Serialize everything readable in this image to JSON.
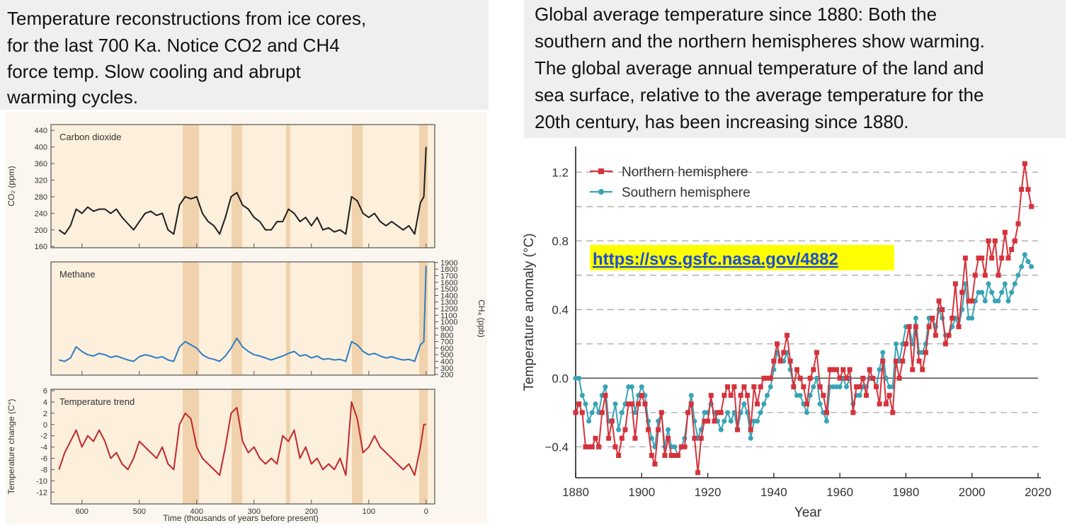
{
  "texts": {
    "left": [
      "Temperature reconstructions from ice cores,",
      "for the last 700 Ka. Notice CO2 and CH4",
      "force temp.  Slow cooling and abrupt",
      "warming cycles."
    ],
    "right": [
      "Global average temperature since 1880: Both the",
      "southern and the northern hemispheres show warming.",
      "The global average annual temperature of the land and",
      "sea surface, relative to the average temperature for the",
      "20th century, has been increasing since 1880."
    ]
  },
  "chart_data": [
    {
      "type": "line",
      "xlabel": "Time (thousands of years before present)",
      "x": [
        640,
        630,
        620,
        610,
        600,
        590,
        580,
        570,
        560,
        550,
        540,
        530,
        520,
        510,
        500,
        490,
        480,
        470,
        460,
        450,
        440,
        430,
        420,
        410,
        400,
        390,
        380,
        370,
        360,
        350,
        340,
        330,
        320,
        310,
        300,
        290,
        280,
        270,
        260,
        250,
        240,
        230,
        220,
        210,
        200,
        190,
        180,
        170,
        160,
        150,
        140,
        130,
        120,
        110,
        100,
        90,
        80,
        70,
        60,
        50,
        40,
        30,
        20,
        10,
        4,
        0
      ],
      "xlim": [
        654,
        -15
      ],
      "xticks": [
        600,
        500,
        400,
        300,
        200,
        100,
        0
      ],
      "panels": [
        {
          "title": "Carbon dioxide",
          "ylabel": "CO₂ (ppm)",
          "axis": "left",
          "color": "#1e1e1e",
          "ylim": [
            157,
            454
          ],
          "yticks": [
            160,
            200,
            240,
            280,
            320,
            360,
            400,
            440
          ],
          "values": [
            200,
            190,
            210,
            250,
            240,
            255,
            245,
            250,
            250,
            240,
            250,
            230,
            215,
            200,
            220,
            240,
            245,
            235,
            240,
            200,
            190,
            260,
            280,
            275,
            280,
            240,
            220,
            210,
            190,
            230,
            280,
            290,
            260,
            250,
            230,
            220,
            200,
            200,
            220,
            220,
            250,
            240,
            220,
            230,
            210,
            230,
            200,
            205,
            195,
            200,
            190,
            280,
            270,
            240,
            230,
            240,
            220,
            210,
            220,
            210,
            200,
            210,
            190,
            265,
            280,
            400
          ]
        },
        {
          "title": "Methane",
          "ylabel": "CH₄ (ppb)",
          "axis": "right",
          "color": "#2f7dc4",
          "ylim": [
            190,
            1910
          ],
          "yticks": [
            200,
            300,
            400,
            500,
            600,
            700,
            800,
            900,
            1000,
            1100,
            1200,
            1300,
            1400,
            1500,
            1600,
            1700,
            1800,
            1900
          ],
          "values": [
            420,
            400,
            450,
            620,
            550,
            500,
            480,
            520,
            500,
            460,
            480,
            450,
            420,
            400,
            470,
            500,
            480,
            450,
            470,
            420,
            400,
            620,
            700,
            650,
            600,
            500,
            450,
            430,
            400,
            480,
            600,
            750,
            620,
            550,
            500,
            480,
            450,
            420,
            450,
            480,
            520,
            550,
            480,
            500,
            450,
            480,
            430,
            440,
            420,
            430,
            400,
            700,
            650,
            550,
            500,
            520,
            480,
            450,
            470,
            440,
            420,
            430,
            400,
            650,
            700,
            1850
          ]
        },
        {
          "title": "Temperature trend",
          "ylabel": "Temperature change (C°)",
          "axis": "left",
          "color": "#c0282d",
          "ylim": [
            -14.1,
            6.25
          ],
          "yticks": [
            6,
            4,
            2,
            0,
            -2,
            -4,
            -6,
            -8,
            -10,
            -12
          ],
          "values": [
            -8,
            -5,
            -3,
            -1,
            -4,
            -2,
            -3,
            -1,
            -3,
            -6,
            -5,
            -7,
            -8,
            -6,
            -3,
            -4,
            -5,
            -6,
            -4,
            -7,
            -8,
            0,
            2,
            1,
            -4,
            -6,
            -7,
            -8,
            -9,
            -4,
            2,
            3,
            -3,
            -5,
            -4,
            -6,
            -7,
            -6,
            -7,
            -2,
            -3,
            -1,
            -6,
            -4,
            -7,
            -6,
            -8,
            -7,
            -8,
            -6,
            -9,
            4,
            1,
            -5,
            -4,
            -2,
            -4,
            -5,
            -6,
            -7,
            -8,
            -7,
            -9,
            -4,
            0,
            0
          ]
        }
      ]
    },
    {
      "type": "line",
      "xlabel": "Year",
      "ylabel": "Temperature anomaly (°C)",
      "annotation": "https://svs.gsfc.nasa.gov/4882",
      "legend": "upper left",
      "xlim": [
        1880,
        2020
      ],
      "xticks": [
        1880,
        1900,
        1920,
        1940,
        1960,
        1980,
        2000,
        2020
      ],
      "ylim": [
        -0.58,
        1.35
      ],
      "yticks": [
        {
          "value": -0.4,
          "label": "−0.4"
        },
        {
          "value": 0,
          "label": "0.0"
        },
        {
          "value": 0.4,
          "label": "0.4"
        },
        {
          "value": 0.8,
          "label": "0.8"
        },
        {
          "value": 1.2,
          "label": "1.2"
        }
      ],
      "minor_yticks": [
        -0.2,
        0.2,
        0.6,
        1.0
      ],
      "x": [
        1880,
        1881,
        1882,
        1883,
        1884,
        1885,
        1886,
        1887,
        1888,
        1889,
        1890,
        1891,
        1892,
        1893,
        1894,
        1895,
        1896,
        1897,
        1898,
        1899,
        1900,
        1901,
        1902,
        1903,
        1904,
        1905,
        1906,
        1907,
        1908,
        1909,
        1910,
        1911,
        1912,
        1913,
        1914,
        1915,
        1916,
        1917,
        1918,
        1919,
        1920,
        1921,
        1922,
        1923,
        1924,
        1925,
        1926,
        1927,
        1928,
        1929,
        1930,
        1931,
        1932,
        1933,
        1934,
        1935,
        1936,
        1937,
        1938,
        1939,
        1940,
        1941,
        1942,
        1943,
        1944,
        1945,
        1946,
        1947,
        1948,
        1949,
        1950,
        1951,
        1952,
        1953,
        1954,
        1955,
        1956,
        1957,
        1958,
        1959,
        1960,
        1961,
        1962,
        1963,
        1964,
        1965,
        1966,
        1967,
        1968,
        1969,
        1970,
        1971,
        1972,
        1973,
        1974,
        1975,
        1976,
        1977,
        1978,
        1979,
        1980,
        1981,
        1982,
        1983,
        1984,
        1985,
        1986,
        1987,
        1988,
        1989,
        1990,
        1991,
        1992,
        1993,
        1994,
        1995,
        1996,
        1997,
        1998,
        1999,
        2000,
        2001,
        2002,
        2003,
        2004,
        2005,
        2006,
        2007,
        2008,
        2009,
        2010,
        2011,
        2012,
        2013,
        2014,
        2015,
        2016,
        2017,
        2018
      ],
      "series": [
        {
          "name": "Northern hemisphere",
          "color": "#d5333c",
          "marker": "square",
          "values": [
            -0.2,
            -0.15,
            -0.2,
            -0.4,
            -0.4,
            -0.4,
            -0.35,
            -0.4,
            -0.2,
            -0.1,
            -0.35,
            -0.25,
            -0.4,
            -0.45,
            -0.35,
            -0.3,
            -0.15,
            -0.15,
            -0.35,
            -0.15,
            -0.1,
            -0.15,
            -0.3,
            -0.45,
            -0.5,
            -0.3,
            -0.2,
            -0.45,
            -0.35,
            -0.45,
            -0.45,
            -0.45,
            -0.4,
            -0.4,
            -0.2,
            -0.15,
            -0.35,
            -0.55,
            -0.35,
            -0.25,
            -0.25,
            -0.1,
            -0.25,
            -0.2,
            -0.2,
            -0.1,
            -0.05,
            -0.1,
            -0.05,
            -0.3,
            -0.1,
            -0.05,
            -0.1,
            -0.3,
            -0.05,
            -0.15,
            -0.05,
            0.0,
            0.0,
            0.0,
            0.1,
            0.2,
            0.1,
            0.15,
            0.25,
            0.1,
            -0.05,
            0.05,
            0.0,
            -0.05,
            -0.15,
            0.0,
            0.05,
            0.15,
            -0.05,
            -0.1,
            -0.2,
            0.05,
            0.05,
            0.05,
            0.0,
            0.05,
            0.0,
            0.05,
            -0.2,
            -0.05,
            -0.05,
            0.0,
            -0.1,
            0.05,
            0.0,
            -0.05,
            -0.15,
            0.1,
            -0.15,
            -0.1,
            -0.2,
            0.1,
            0.0,
            0.1,
            0.2,
            0.3,
            0.05,
            0.3,
            0.1,
            0.05,
            0.15,
            0.3,
            0.35,
            0.25,
            0.45,
            0.4,
            0.2,
            0.25,
            0.35,
            0.55,
            0.3,
            0.5,
            0.7,
            0.45,
            0.45,
            0.6,
            0.7,
            0.7,
            0.6,
            0.8,
            0.7,
            0.8,
            0.6,
            0.7,
            0.85,
            0.7,
            0.75,
            0.8,
            0.9,
            1.1,
            1.25,
            1.1,
            1.0
          ]
        },
        {
          "name": "Southern hemisphere",
          "color": "#38a3b6",
          "marker": "circle",
          "values": [
            0.0,
            0.0,
            -0.1,
            -0.15,
            -0.25,
            -0.2,
            -0.15,
            -0.2,
            -0.1,
            -0.05,
            -0.25,
            -0.25,
            -0.15,
            -0.3,
            -0.2,
            -0.15,
            -0.05,
            -0.05,
            -0.2,
            -0.1,
            -0.05,
            -0.1,
            -0.25,
            -0.35,
            -0.4,
            -0.25,
            -0.2,
            -0.4,
            -0.3,
            -0.4,
            -0.4,
            -0.45,
            -0.4,
            -0.35,
            -0.2,
            -0.1,
            -0.25,
            -0.35,
            -0.3,
            -0.2,
            -0.2,
            -0.15,
            -0.2,
            -0.25,
            -0.3,
            -0.25,
            -0.2,
            -0.25,
            -0.2,
            -0.3,
            -0.2,
            -0.15,
            -0.2,
            -0.35,
            -0.25,
            -0.25,
            -0.2,
            -0.15,
            -0.1,
            -0.05,
            0.05,
            0.15,
            0.1,
            0.1,
            0.15,
            0.05,
            -0.05,
            -0.1,
            -0.1,
            -0.15,
            -0.2,
            -0.1,
            -0.05,
            0.0,
            -0.15,
            -0.2,
            -0.25,
            -0.05,
            -0.05,
            -0.05,
            -0.05,
            0.0,
            -0.05,
            0.0,
            -0.15,
            -0.1,
            -0.1,
            -0.05,
            -0.05,
            0.0,
            0.0,
            -0.05,
            0.05,
            0.15,
            0.0,
            -0.05,
            -0.05,
            0.2,
            0.1,
            0.2,
            0.3,
            0.3,
            0.2,
            0.35,
            0.15,
            0.15,
            0.2,
            0.35,
            0.35,
            0.3,
            0.4,
            0.35,
            0.25,
            0.25,
            0.3,
            0.35,
            0.3,
            0.4,
            0.55,
            0.35,
            0.35,
            0.45,
            0.5,
            0.5,
            0.45,
            0.55,
            0.5,
            0.45,
            0.45,
            0.5,
            0.55,
            0.45,
            0.5,
            0.55,
            0.6,
            0.65,
            0.72,
            0.68,
            0.65
          ]
        }
      ]
    }
  ]
}
